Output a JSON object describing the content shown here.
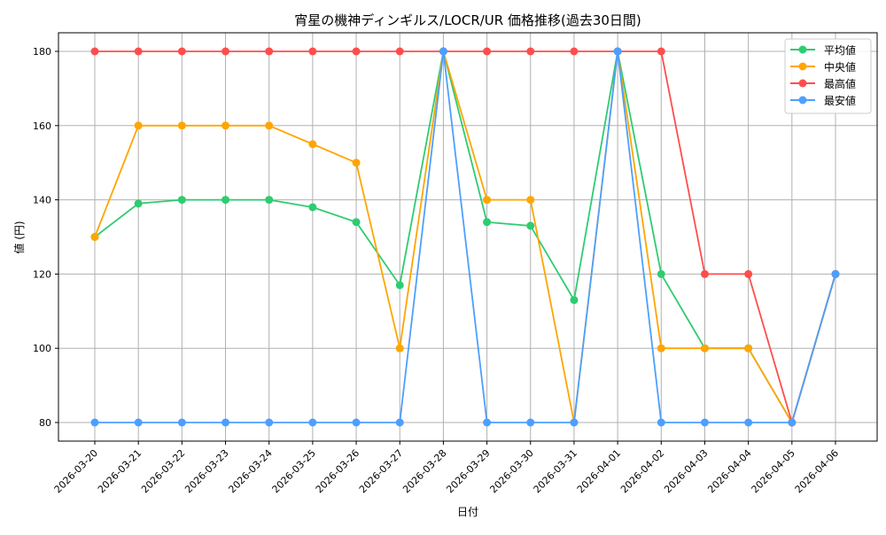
{
  "chart_data": {
    "type": "line",
    "title": "宵星の機神ディンギルス/LOCR/UR 価格推移(過去30日間)",
    "xlabel": "日付",
    "ylabel": "値 (円)",
    "ylim": [
      75,
      185
    ],
    "yticks": [
      80,
      100,
      120,
      140,
      160,
      180
    ],
    "grid": true,
    "legend_position": "top-right",
    "x": [
      "2026-03-20",
      "2026-03-21",
      "2026-03-22",
      "2026-03-23",
      "2026-03-24",
      "2026-03-25",
      "2026-03-26",
      "2026-03-27",
      "2026-03-28",
      "2026-03-29",
      "2026-03-30",
      "2026-03-31",
      "2026-04-01",
      "2026-04-02",
      "2026-04-03",
      "2026-04-04",
      "2026-04-05",
      "2026-04-06"
    ],
    "series": [
      {
        "name": "平均値",
        "color": "#2ecc71",
        "values": [
          130,
          139,
          140,
          140,
          140,
          138,
          134,
          117,
          180,
          134,
          133,
          113,
          180,
          120,
          100,
          100,
          80,
          120
        ]
      },
      {
        "name": "中央値",
        "color": "#ffa500",
        "values": [
          130,
          160,
          160,
          160,
          160,
          155,
          150,
          100,
          180,
          140,
          140,
          80,
          180,
          100,
          100,
          100,
          80,
          120
        ]
      },
      {
        "name": "最高値",
        "color": "#ff4d4d",
        "values": [
          180,
          180,
          180,
          180,
          180,
          180,
          180,
          180,
          180,
          180,
          180,
          180,
          180,
          180,
          120,
          120,
          80,
          120
        ]
      },
      {
        "name": "最安値",
        "color": "#4d9fff",
        "values": [
          80,
          80,
          80,
          80,
          80,
          80,
          80,
          80,
          180,
          80,
          80,
          80,
          180,
          80,
          80,
          80,
          80,
          120
        ]
      }
    ]
  }
}
